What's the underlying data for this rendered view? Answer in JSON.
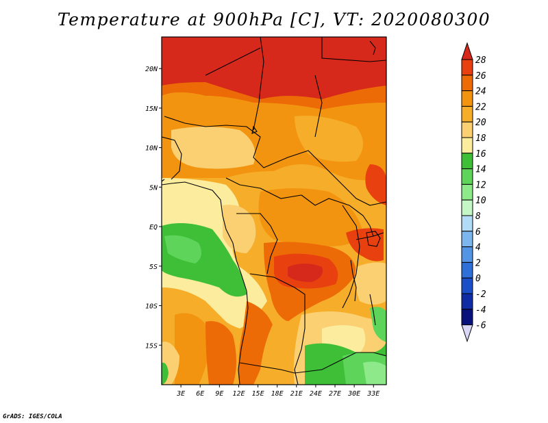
{
  "title": "Temperature at 900hPa [C], VT: 2020080300",
  "footer": "GrADS: IGES/COLA",
  "map": {
    "lon_range": [
      0,
      35
    ],
    "lat_range": [
      -20,
      24
    ],
    "lon_ticks": [
      "3E",
      "6E",
      "9E",
      "12E",
      "15E",
      "18E",
      "21E",
      "24E",
      "27E",
      "30E",
      "33E"
    ],
    "lat_ticks": [
      "20N",
      "15N",
      "10N",
      "5N",
      "EQ",
      "5S",
      "10S",
      "15S"
    ]
  },
  "colorbar": {
    "labels": [
      "28",
      "26",
      "24",
      "22",
      "20",
      "18",
      "16",
      "14",
      "12",
      "10",
      "8",
      "6",
      "4",
      "2",
      "0",
      "-2",
      "-4",
      "-6"
    ],
    "colors": [
      "#d7291b",
      "#e8410f",
      "#ec6b06",
      "#f2940f",
      "#f6ad2a",
      "#fbd072",
      "#fbec9e",
      "#3ebf37",
      "#5ed45a",
      "#8de98a",
      "#c4f6c6",
      "#b2dcf5",
      "#7cb6ec",
      "#5395e4",
      "#2e6fd8",
      "#1b4fc8",
      "#0f2ca4",
      "#07127a",
      "#d8d8f6"
    ]
  }
}
